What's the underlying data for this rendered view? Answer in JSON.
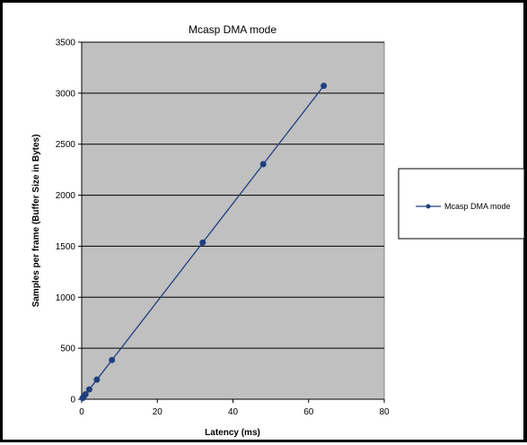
{
  "chart_data": {
    "type": "line",
    "title": "Mcasp DMA mode",
    "xlabel": "Latency (ms)",
    "ylabel": "Samples per frame (Buffer Size in Bytes)",
    "xlim": [
      0,
      80
    ],
    "ylim": [
      0,
      3500
    ],
    "xticks": [
      0,
      20,
      40,
      60,
      80
    ],
    "yticks": [
      0,
      500,
      1000,
      1500,
      2000,
      2500,
      3000,
      3500
    ],
    "grid": "horizontal",
    "legend_position": "right",
    "plot_background": "#c0c0c0",
    "series": [
      {
        "name": "Mcasp DMA mode",
        "color": "#1f3f7f",
        "x": [
          0.25,
          0.5,
          1,
          2,
          4,
          8,
          32,
          48,
          64
        ],
        "y": [
          12,
          24,
          48,
          96,
          192,
          384,
          1536,
          2304,
          3072
        ]
      }
    ]
  }
}
